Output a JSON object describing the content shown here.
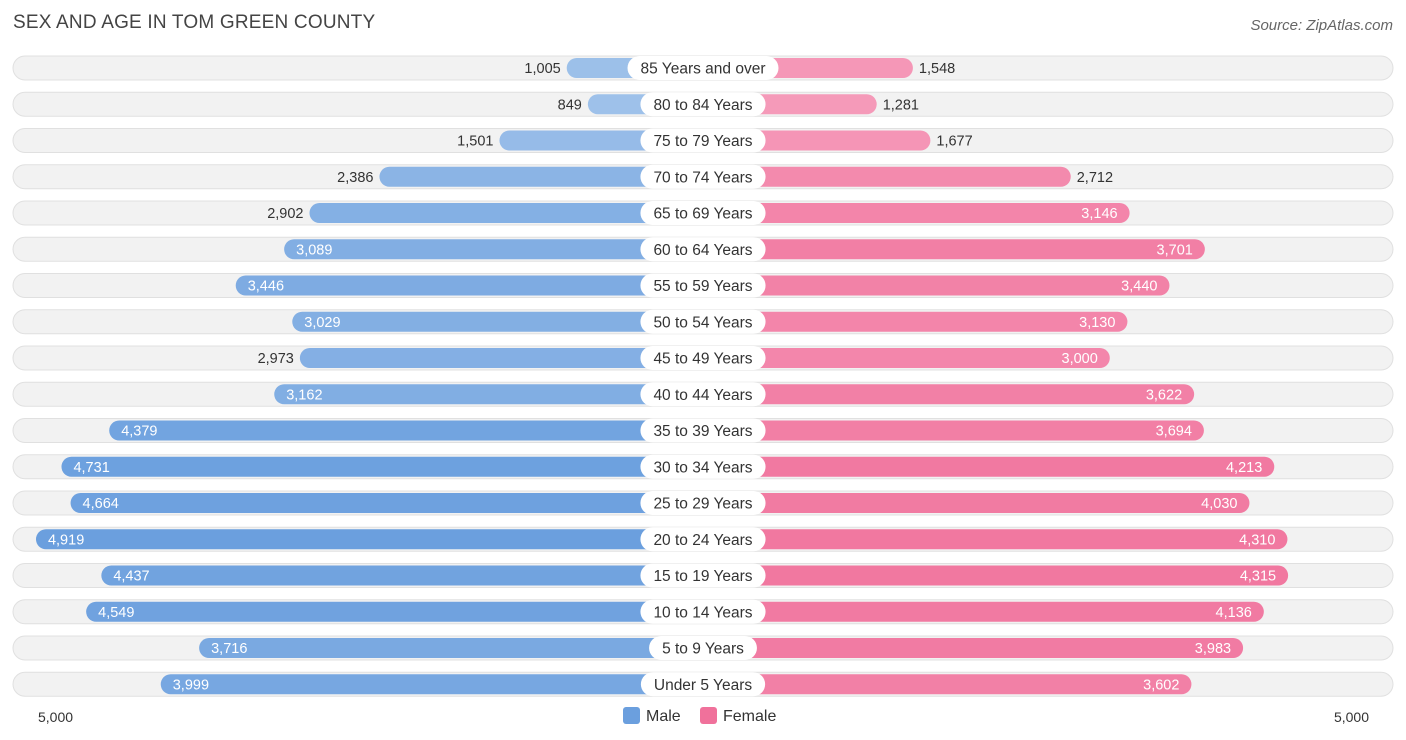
{
  "chart_data": {
    "type": "bar",
    "orientation": "horizontal-diverging",
    "title": "SEX AND AGE IN TOM GREEN COUNTY",
    "source": "Source: ZipAtlas.com",
    "categories": [
      "85 Years and over",
      "80 to 84 Years",
      "75 to 79 Years",
      "70 to 74 Years",
      "65 to 69 Years",
      "60 to 64 Years",
      "55 to 59 Years",
      "50 to 54 Years",
      "45 to 49 Years",
      "40 to 44 Years",
      "35 to 39 Years",
      "30 to 34 Years",
      "25 to 29 Years",
      "20 to 24 Years",
      "15 to 19 Years",
      "10 to 14 Years",
      "5 to 9 Years",
      "Under 5 Years"
    ],
    "series": [
      {
        "name": "Male",
        "values": [
          1005,
          849,
          1501,
          2386,
          2902,
          3089,
          3446,
          3029,
          2973,
          3162,
          4379,
          4731,
          4664,
          4919,
          4437,
          4549,
          3716,
          3999
        ],
        "labels": [
          "1,005",
          "849",
          "1,501",
          "2,386",
          "2,902",
          "3,089",
          "3,446",
          "3,029",
          "2,973",
          "3,162",
          "4,379",
          "4,731",
          "4,664",
          "4,919",
          "4,437",
          "4,549",
          "3,716",
          "3,999"
        ]
      },
      {
        "name": "Female",
        "values": [
          1548,
          1281,
          1677,
          2712,
          3146,
          3701,
          3440,
          3130,
          3000,
          3622,
          3694,
          4213,
          4030,
          4310,
          4315,
          4136,
          3983,
          3602
        ],
        "labels": [
          "1,548",
          "1,281",
          "1,677",
          "2,712",
          "3,146",
          "3,701",
          "3,440",
          "3,130",
          "3,000",
          "3,622",
          "3,694",
          "4,213",
          "4,030",
          "4,310",
          "4,315",
          "4,136",
          "3,983",
          "3,602"
        ]
      }
    ],
    "xlim": [
      0,
      5000
    ],
    "axis_left_label": "5,000",
    "axis_right_label": "5,000",
    "legend_placement": "bottom-center",
    "colors": {
      "male_light": "#a9c8ec",
      "male_dark": "#6b9fde",
      "female_light": "#f7a8c4",
      "female_dark": "#f0719b"
    }
  }
}
